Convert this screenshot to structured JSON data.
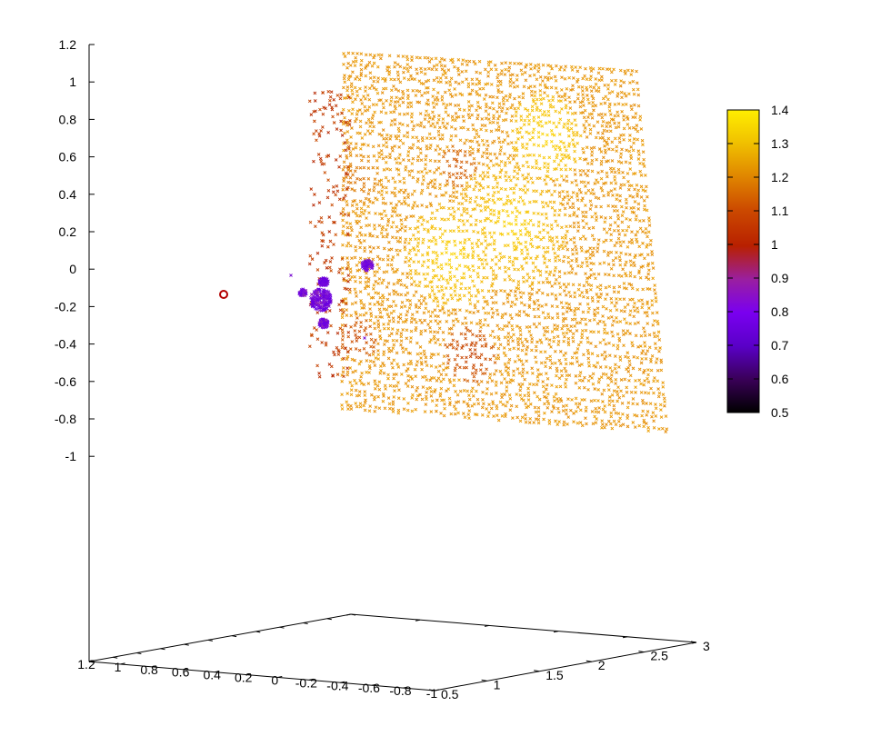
{
  "chart_data": {
    "type": "scatter3d",
    "title": "",
    "xlabel": "",
    "ylabel": "",
    "zlabel": "",
    "grid": false,
    "colormap": "gnuplot",
    "z_axis": {
      "range": [
        -1,
        1.2
      ],
      "ticks": [
        "1.2",
        "1",
        "0.8",
        "0.6",
        "0.4",
        "0.2",
        "0",
        "-0.2",
        "-0.4",
        "-0.6",
        "-0.8",
        "-1"
      ]
    },
    "front_axis": {
      "ticks": [
        "1.2",
        "1",
        "0.8",
        "0.6",
        "0.4",
        "0.2",
        "0",
        "-0.2",
        "-0.4",
        "-0.6",
        "-0.8",
        "-1"
      ]
    },
    "right_axis": {
      "ticks": [
        "0.5",
        "1",
        "1.5",
        "2",
        "2.5",
        "3"
      ]
    },
    "colorbar": {
      "range": [
        0.5,
        1.4
      ],
      "ticks": [
        "1.4",
        "1.3",
        "1.2",
        "1.1",
        "1",
        "0.9",
        "0.8",
        "0.7",
        "0.6",
        "0.5"
      ]
    },
    "series": [
      {
        "marker": "x",
        "regions": [
          {
            "description": "main point cloud plane",
            "color_value_range": [
              1.05,
              1.38
            ]
          },
          {
            "description": "dense darker patch upper",
            "color_value": 1.08
          },
          {
            "description": "dense darker patch lower",
            "color_value": 1.05
          },
          {
            "description": "left-edge cluster",
            "color_value": 1.02
          },
          {
            "description": "purple cluster",
            "color_value_range": [
              0.72,
              0.86
            ]
          }
        ]
      }
    ],
    "highlight_point": {
      "marker": "open-circle",
      "color": "#b30000"
    }
  }
}
